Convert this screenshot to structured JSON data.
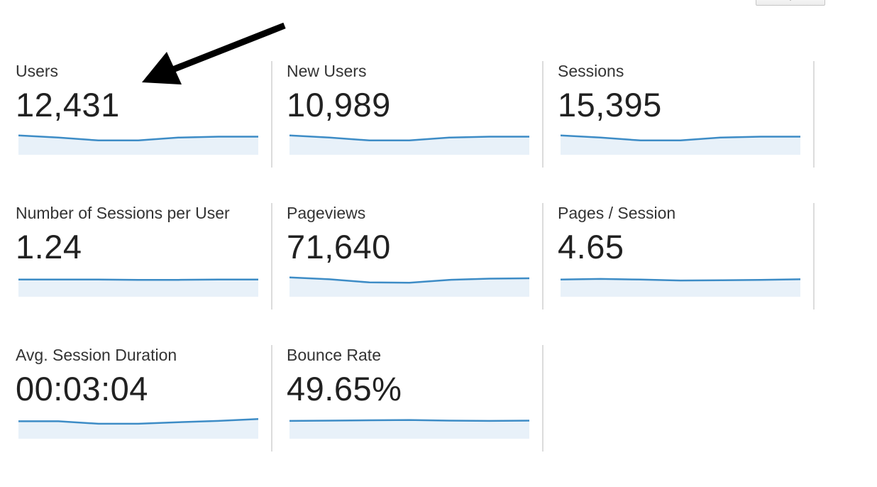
{
  "metrics": [
    {
      "id": "users",
      "label": "Users",
      "value": "12,431",
      "trend": [
        0.62,
        0.55,
        0.46,
        0.46,
        0.55,
        0.58,
        0.58
      ]
    },
    {
      "id": "new-users",
      "label": "New Users",
      "value": "10,989",
      "trend": [
        0.62,
        0.55,
        0.46,
        0.46,
        0.55,
        0.58,
        0.58
      ],
      "selected": true
    },
    {
      "id": "sessions",
      "label": "Sessions",
      "value": "15,395",
      "trend": [
        0.62,
        0.55,
        0.46,
        0.46,
        0.55,
        0.58,
        0.58
      ]
    },
    {
      "id": "sessions-per-user",
      "label": "Number of Sessions per User",
      "value": "1.24",
      "trend": [
        0.55,
        0.55,
        0.55,
        0.54,
        0.54,
        0.55,
        0.55
      ]
    },
    {
      "id": "pageviews",
      "label": "Pageviews",
      "value": "71,640",
      "trend": [
        0.62,
        0.56,
        0.46,
        0.45,
        0.54,
        0.58,
        0.59
      ]
    },
    {
      "id": "pages-per-session",
      "label": "Pages / Session",
      "value": "4.65",
      "trend": [
        0.55,
        0.57,
        0.55,
        0.52,
        0.53,
        0.54,
        0.56
      ]
    },
    {
      "id": "avg-session-duration",
      "label": "Avg. Session Duration",
      "value": "00:03:04",
      "trend": [
        0.56,
        0.56,
        0.48,
        0.48,
        0.53,
        0.57,
        0.63
      ]
    },
    {
      "id": "bounce-rate",
      "label": "Bounce Rate",
      "value": "49.65%",
      "trend": [
        0.57,
        0.58,
        0.59,
        0.6,
        0.58,
        0.57,
        0.58
      ]
    }
  ],
  "colors": {
    "line": "#3d8cc6",
    "fill": "#e8f1f9",
    "divider": "#dcdcdc",
    "arrow": "#000000"
  }
}
